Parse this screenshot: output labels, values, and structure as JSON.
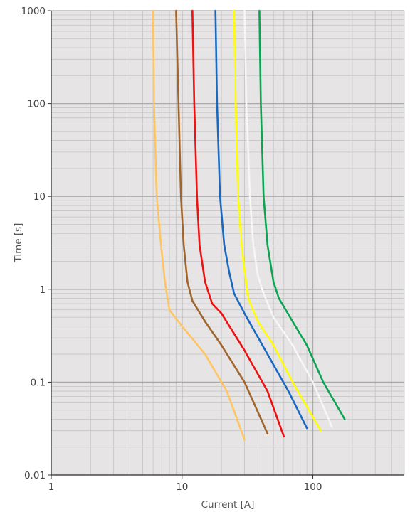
{
  "chart_data": {
    "type": "line",
    "title": "",
    "xlabel": "Current [A]",
    "ylabel": "Time [s]",
    "xscale": "log",
    "yscale": "log",
    "xlim": [
      1,
      500
    ],
    "ylim": [
      0.01,
      1000
    ],
    "x_ticks": [
      1,
      10,
      100
    ],
    "x_tick_labels": [
      "1",
      "10",
      "100"
    ],
    "y_ticks": [
      0.01,
      0.1,
      1,
      10,
      100,
      1000
    ],
    "y_tick_labels": [
      "0.01",
      "0.1",
      "1",
      "10",
      "100",
      "1000"
    ],
    "grid": true,
    "legend": "none",
    "colors": {
      "plot_background": "#e6e4e4",
      "grid_major": "#aaaaaa",
      "grid_minor": "#c4c4c4",
      "axis": "#333333"
    },
    "series": [
      {
        "color": "#ffc562",
        "points": [
          [
            6,
            1000
          ],
          [
            6.1,
            100
          ],
          [
            6.4,
            10
          ],
          [
            6.9,
            3
          ],
          [
            7.4,
            1.2
          ],
          [
            8,
            0.6
          ],
          [
            10,
            0.4
          ],
          [
            15,
            0.2
          ],
          [
            22,
            0.08
          ],
          [
            30,
            0.024
          ]
        ]
      },
      {
        "color": "#a0662e",
        "points": [
          [
            9,
            1000
          ],
          [
            9.4,
            100
          ],
          [
            9.8,
            10
          ],
          [
            10.3,
            3
          ],
          [
            11,
            1.2
          ],
          [
            12,
            0.75
          ],
          [
            15,
            0.45
          ],
          [
            20,
            0.25
          ],
          [
            30,
            0.1
          ],
          [
            45,
            0.028
          ]
        ]
      },
      {
        "color": "#ee1111",
        "points": [
          [
            12,
            1000
          ],
          [
            12.4,
            100
          ],
          [
            13,
            10
          ],
          [
            13.6,
            3
          ],
          [
            15,
            1.2
          ],
          [
            17,
            0.7
          ],
          [
            20,
            0.55
          ],
          [
            30,
            0.22
          ],
          [
            45,
            0.08
          ],
          [
            60,
            0.026
          ]
        ]
      },
      {
        "color": "#1a69c1",
        "points": [
          [
            18,
            1000
          ],
          [
            18.5,
            100
          ],
          [
            19.5,
            10
          ],
          [
            21,
            3
          ],
          [
            23,
            1.5
          ],
          [
            25,
            0.9
          ],
          [
            30,
            0.55
          ],
          [
            45,
            0.2
          ],
          [
            65,
            0.08
          ],
          [
            90,
            0.032
          ]
        ]
      },
      {
        "color": "#ffff00",
        "points": [
          [
            25,
            1000
          ],
          [
            25.7,
            100
          ],
          [
            26.8,
            10
          ],
          [
            28.5,
            3
          ],
          [
            30,
            1.6
          ],
          [
            32,
            0.8
          ],
          [
            38,
            0.45
          ],
          [
            50,
            0.25
          ],
          [
            70,
            0.1
          ],
          [
            115,
            0.03
          ]
        ]
      },
      {
        "color": "#f6f6f6",
        "points": [
          [
            30,
            1000
          ],
          [
            31,
            100
          ],
          [
            33,
            10
          ],
          [
            35,
            3
          ],
          [
            38,
            1.4
          ],
          [
            42,
            0.9
          ],
          [
            50,
            0.5
          ],
          [
            70,
            0.25
          ],
          [
            100,
            0.1
          ],
          [
            140,
            0.033
          ]
        ]
      },
      {
        "color": "#0ba552",
        "points": [
          [
            39,
            1000
          ],
          [
            40,
            100
          ],
          [
            42,
            10
          ],
          [
            45,
            3
          ],
          [
            50,
            1.2
          ],
          [
            55,
            0.8
          ],
          [
            70,
            0.45
          ],
          [
            90,
            0.25
          ],
          [
            120,
            0.1
          ],
          [
            175,
            0.04
          ]
        ]
      }
    ]
  }
}
